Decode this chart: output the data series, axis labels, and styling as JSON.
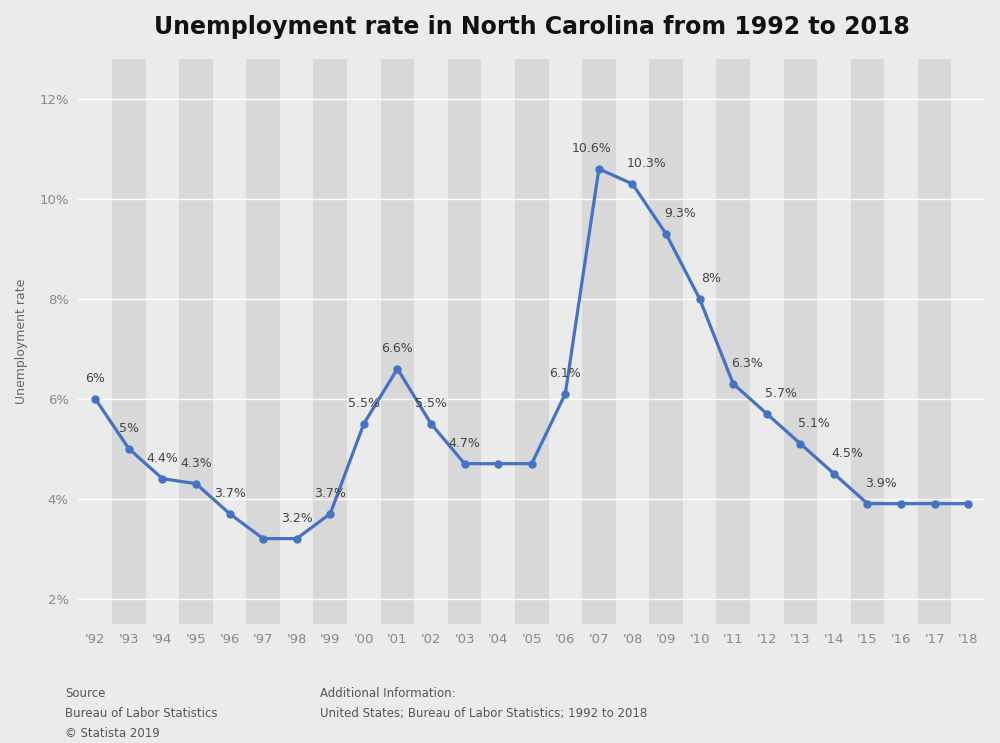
{
  "title": "Unemployment rate in North Carolina from 1992 to 2018",
  "ylabel": "Unemployment rate",
  "year_labels": [
    "'92",
    "'93",
    "'94",
    "'95",
    "'96",
    "'97",
    "'98",
    "'99",
    "'00",
    "'01",
    "'02",
    "'03",
    "'04",
    "'05",
    "'06",
    "'07",
    "'08",
    "'09",
    "'10",
    "'11",
    "'12",
    "'13",
    "'14",
    "'15",
    "'16",
    "'17",
    "'18"
  ],
  "y_vals": [
    6.0,
    5.0,
    4.4,
    4.3,
    3.7,
    3.2,
    3.2,
    3.7,
    5.5,
    6.6,
    5.5,
    4.7,
    4.7,
    4.7,
    6.1,
    10.6,
    10.3,
    9.3,
    8.0,
    6.3,
    5.7,
    5.1,
    4.5,
    3.9,
    3.9,
    3.9,
    3.9
  ],
  "annotations": {
    "0": [
      "6%",
      0,
      10
    ],
    "1": [
      "5%",
      0,
      10
    ],
    "2": [
      "4.4%",
      0,
      10
    ],
    "3": [
      "4.3%",
      0,
      10
    ],
    "4": [
      "3.7%",
      0,
      10
    ],
    "6": [
      "3.2%",
      0,
      10
    ],
    "7": [
      "3.7%",
      0,
      10
    ],
    "8": [
      "5.5%",
      0,
      10
    ],
    "9": [
      "6.6%",
      0,
      10
    ],
    "10": [
      "5.5%",
      0,
      10
    ],
    "11": [
      "4.7%",
      0,
      10
    ],
    "14": [
      "6.1%",
      0,
      10
    ],
    "15": [
      "10.6%",
      -5,
      10
    ],
    "16": [
      "10.3%",
      10,
      10
    ],
    "17": [
      "9.3%",
      10,
      10
    ],
    "18": [
      "8%",
      8,
      10
    ],
    "19": [
      "6.3%",
      10,
      10
    ],
    "20": [
      "5.7%",
      10,
      10
    ],
    "21": [
      "5.1%",
      10,
      10
    ],
    "22": [
      "4.5%",
      10,
      10
    ],
    "23": [
      "3.9%",
      10,
      10
    ]
  },
  "line_color": "#4472C4",
  "bg_color": "#ebebeb",
  "plot_bg_color": "#ebebeb",
  "stripe_color": "#d8d8d8",
  "grid_color": "#ffffff",
  "title_fontsize": 17,
  "annot_fontsize": 9,
  "tick_fontsize": 9.5,
  "ylabel_fontsize": 9,
  "ylim": [
    1.5,
    12.8
  ],
  "yticks": [
    2,
    4,
    6,
    8,
    10,
    12
  ],
  "source_text": "Source\nBureau of Labor Statistics\n© Statista 2019",
  "additional_text": "Additional Information:\nUnited States; Bureau of Labor Statistics; 1992 to 2018"
}
